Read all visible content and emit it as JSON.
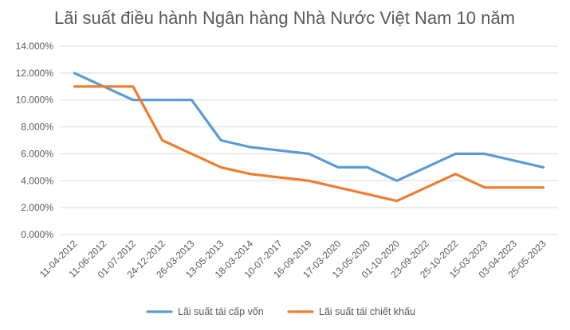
{
  "chart_data": {
    "type": "line",
    "title": "Lãi suất điều hành Ngân hàng Nhà Nước Việt Nam 10 năm",
    "xlabel": "",
    "ylabel": "",
    "categories": [
      "11-04-2012",
      "11-06-2012",
      "01-07-2012",
      "24-12-2012",
      "26-03-2013",
      "13-05-2013",
      "18-03-2014",
      "10-07-2017",
      "16-09-2019",
      "17-03-2020",
      "13-05-2020",
      "01-10-2020",
      "23-09-2022",
      "25-10-2022",
      "15-03-2023",
      "03-04-2023",
      "25-05-2023"
    ],
    "ylim": [
      0,
      14
    ],
    "y_ticks": [
      0,
      2,
      4,
      6,
      8,
      10,
      12,
      14
    ],
    "y_tick_labels": [
      "0.000%",
      "2.000%",
      "4.000%",
      "6.000%",
      "8.000%",
      "10.000%",
      "12.000%",
      "14.000%"
    ],
    "grid": true,
    "legend_position": "bottom",
    "series": [
      {
        "name": "Lãi suất tái cấp vốn",
        "color": "#5B9BD5",
        "values": [
          12,
          11,
          10,
          10,
          10,
          7,
          6.5,
          6.25,
          6,
          5,
          5,
          4,
          5,
          6,
          6,
          5.5,
          5
        ]
      },
      {
        "name": "Lãi suất tái chiết khấu",
        "color": "#ED7D31",
        "values": [
          11,
          11,
          11,
          7,
          6,
          5,
          4.5,
          4.25,
          4,
          3.5,
          3,
          2.5,
          3.5,
          4.5,
          3.5,
          3.5,
          3.5
        ]
      }
    ]
  }
}
